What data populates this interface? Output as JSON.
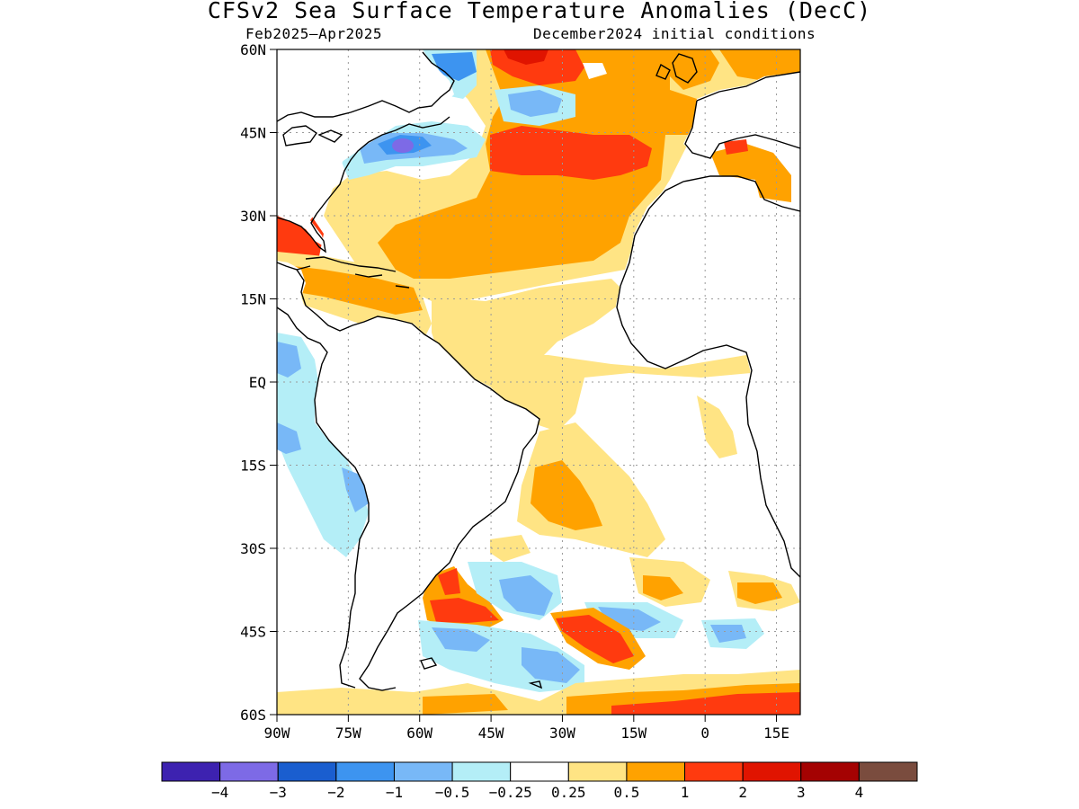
{
  "title": "CFSv2 Sea Surface Temperature Anomalies (DecC)",
  "subtitle_left": "Feb2025–Apr2025",
  "subtitle_right": "December2024 initial conditions",
  "map": {
    "lon_range": [
      -90,
      20
    ],
    "lat_range": [
      -60,
      60
    ],
    "lat_ticks": [
      {
        "value": 60,
        "label": "60N"
      },
      {
        "value": 45,
        "label": "45N"
      },
      {
        "value": 30,
        "label": "30N"
      },
      {
        "value": 15,
        "label": "15N"
      },
      {
        "value": 0,
        "label": "EQ"
      },
      {
        "value": -15,
        "label": "15S"
      },
      {
        "value": -30,
        "label": "30S"
      },
      {
        "value": -45,
        "label": "45S"
      },
      {
        "value": -60,
        "label": "60S"
      }
    ],
    "lon_ticks": [
      {
        "value": -90,
        "label": "90W"
      },
      {
        "value": -75,
        "label": "75W"
      },
      {
        "value": -60,
        "label": "60W"
      },
      {
        "value": -45,
        "label": "45W"
      },
      {
        "value": -30,
        "label": "30W"
      },
      {
        "value": -15,
        "label": "15W"
      },
      {
        "value": 0,
        "label": "0"
      },
      {
        "value": 15,
        "label": "15E"
      }
    ],
    "gridlines": "dotted",
    "colors": {
      "ocean_neutral": "#ffffff",
      "land": "#ffffff",
      "coast": "#000000",
      "grid": "#9a9a9a"
    }
  },
  "colorbar": {
    "colors": [
      "#3d22b0",
      "#7d6ae6",
      "#1a5ecf",
      "#3d94f0",
      "#78b8f7",
      "#b4eef7",
      "#ffffff",
      "#ffe484",
      "#ffa200",
      "#ff3a0f",
      "#e01400",
      "#a40202",
      "#7a4c3e"
    ],
    "labels": [
      "−4",
      "−3",
      "−2",
      "−1",
      "−0.5",
      "−0.25",
      "0.25",
      "0.5",
      "1",
      "2",
      "3",
      "4"
    ]
  }
}
